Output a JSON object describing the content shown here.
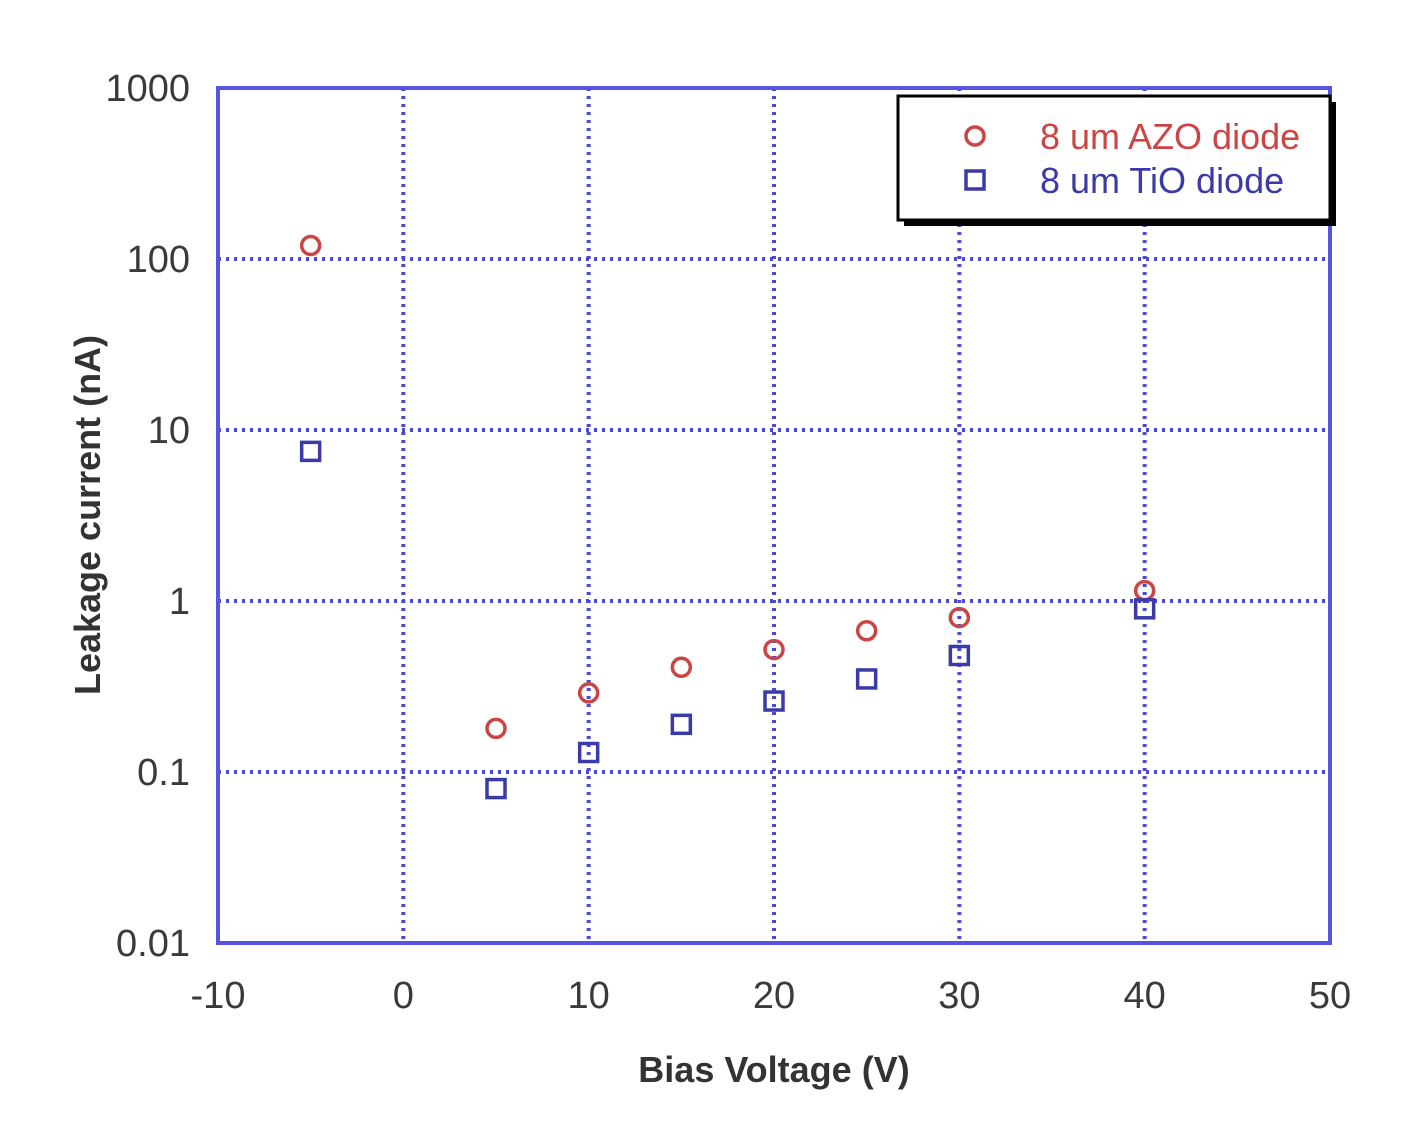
{
  "chart_data": {
    "type": "scatter",
    "title": "",
    "xlabel": "Bias Voltage (V)",
    "ylabel": "Leakage current (nA)",
    "xlim": [
      -10,
      50
    ],
    "ylim": [
      0.01,
      1000
    ],
    "yscale": "log",
    "grid": true,
    "legend_position": "top-right",
    "x_ticks": [
      -10,
      0,
      10,
      20,
      30,
      40,
      50
    ],
    "x_tick_labels": [
      "-10",
      "0",
      "10",
      "20",
      "30",
      "40",
      "50"
    ],
    "y_ticks": [
      0.01,
      0.1,
      1,
      10,
      100,
      1000
    ],
    "y_tick_labels": [
      "0.01",
      "0.1",
      "1",
      "10",
      "100",
      "1000"
    ],
    "series": [
      {
        "name": "8 um AZO diode",
        "marker": "circle",
        "color": "#cc4444",
        "points": [
          [
            -5,
            120
          ],
          [
            5,
            0.18
          ],
          [
            10,
            0.29
          ],
          [
            15,
            0.41
          ],
          [
            20,
            0.52
          ],
          [
            25,
            0.67
          ],
          [
            30,
            0.8
          ],
          [
            40,
            1.15
          ]
        ]
      },
      {
        "name": "8 um TiO diode",
        "marker": "square",
        "color": "#3a3aa8",
        "points": [
          [
            -5,
            7.5
          ],
          [
            5,
            0.08
          ],
          [
            10,
            0.13
          ],
          [
            15,
            0.19
          ],
          [
            20,
            0.26
          ],
          [
            25,
            0.35
          ],
          [
            30,
            0.48
          ],
          [
            40,
            0.9
          ]
        ]
      }
    ]
  },
  "colors": {
    "axes": "#5555e0",
    "grid": "#4a4ad0",
    "legend_border": "#000000"
  }
}
